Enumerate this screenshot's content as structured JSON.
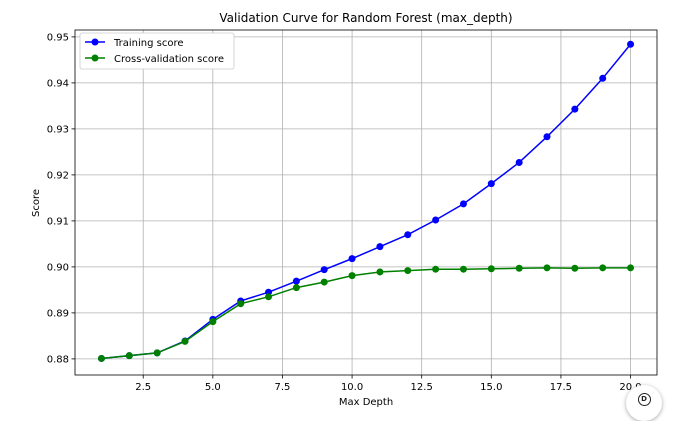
{
  "chart_data": {
    "type": "line",
    "title": "Validation Curve for Random Forest (max_depth)",
    "xlabel": "Max Depth",
    "ylabel": "Score",
    "xlim": [
      0.05,
      20.95
    ],
    "ylim": [
      0.8765,
      0.9515
    ],
    "xticks": [
      2.5,
      5.0,
      7.5,
      10.0,
      12.5,
      15.0,
      17.5,
      20.0
    ],
    "xtick_labels": [
      "2.5",
      "5.0",
      "7.5",
      "10.0",
      "12.5",
      "15.0",
      "17.5",
      "20.0"
    ],
    "yticks": [
      0.88,
      0.89,
      0.9,
      0.91,
      0.92,
      0.93,
      0.94,
      0.95
    ],
    "ytick_labels": [
      "0.88",
      "0.89",
      "0.90",
      "0.91",
      "0.92",
      "0.93",
      "0.94",
      "0.95"
    ],
    "grid": true,
    "legend_position": "top-left",
    "x": [
      1,
      2,
      3,
      4,
      5,
      6,
      7,
      8,
      9,
      10,
      11,
      12,
      13,
      14,
      15,
      16,
      17,
      18,
      19,
      20
    ],
    "series": [
      {
        "name": "Training score",
        "color": "#0000ff",
        "values": [
          0.8801,
          0.8807,
          0.8813,
          0.8839,
          0.8886,
          0.8926,
          0.8945,
          0.8969,
          0.8994,
          0.9018,
          0.9044,
          0.907,
          0.9102,
          0.9137,
          0.9181,
          0.9227,
          0.9283,
          0.9343,
          0.941,
          0.9484
        ]
      },
      {
        "name": "Cross-validation score",
        "color": "#008000",
        "values": [
          0.8801,
          0.8807,
          0.8813,
          0.8838,
          0.8881,
          0.892,
          0.8935,
          0.8955,
          0.8967,
          0.8981,
          0.8989,
          0.8992,
          0.8995,
          0.8995,
          0.8996,
          0.8997,
          0.8998,
          0.8997,
          0.8998,
          0.8998
        ]
      }
    ]
  },
  "corner_button": {
    "icon": "info-icon",
    "glyph": "D"
  }
}
